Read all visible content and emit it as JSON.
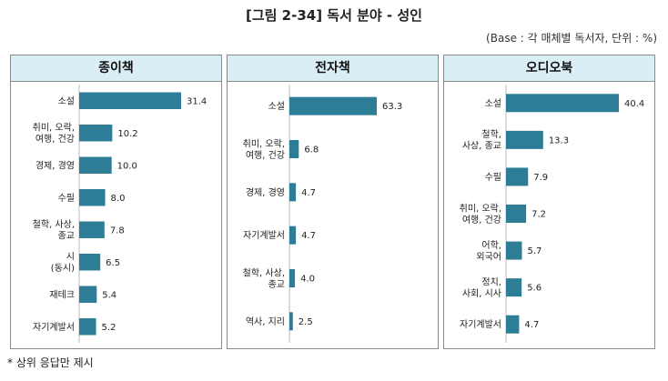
{
  "title": "[그림 2-34] 독서 분야 - 성인",
  "subtitle": "(Base : 각 매체별 독서자, 단위 : %)",
  "footnote": "* 상위 응답만 제시",
  "colors": {
    "bar": "#2e7d96",
    "header_bg": "#daeef6",
    "border": "#8a8a8a"
  },
  "chart_data": [
    {
      "type": "bar",
      "orientation": "horizontal",
      "title": "종이책",
      "categories": [
        [
          "소설"
        ],
        [
          "취미, 오락,",
          "여행, 건강"
        ],
        [
          "경제, 경영"
        ],
        [
          "수필"
        ],
        [
          "철학, 사상,",
          "종교"
        ],
        [
          "시",
          "(동시)"
        ],
        [
          "재테크"
        ],
        [
          "자기계발서"
        ]
      ],
      "values": [
        31.4,
        10.2,
        10.0,
        8.0,
        7.8,
        6.5,
        5.4,
        5.2
      ],
      "labels": [
        "31.4",
        "10.2",
        "10.0",
        "8.0",
        "7.8",
        "6.5",
        "5.4",
        "5.2"
      ]
    },
    {
      "type": "bar",
      "orientation": "horizontal",
      "title": "전자책",
      "categories": [
        [
          "소설"
        ],
        [
          "취미, 오락,",
          "여행, 건강"
        ],
        [
          "경제, 경영"
        ],
        [
          "자기계발서"
        ],
        [
          "철학, 사상,",
          "종교"
        ],
        [
          "역사, 지리"
        ]
      ],
      "values": [
        63.3,
        6.8,
        4.7,
        4.7,
        4.0,
        2.5
      ],
      "labels": [
        "63.3",
        "6.8",
        "4.7",
        "4.7",
        "4.0",
        "2.5"
      ]
    },
    {
      "type": "bar",
      "orientation": "horizontal",
      "title": "오디오북",
      "categories": [
        [
          "소설"
        ],
        [
          "철학,",
          "사상, 종교"
        ],
        [
          "수필"
        ],
        [
          "취미, 오락,",
          "여행, 건강"
        ],
        [
          "어학,",
          "외국어"
        ],
        [
          "정치,",
          "사회, 시사"
        ],
        [
          "자기계발서"
        ]
      ],
      "values": [
        40.4,
        13.3,
        7.9,
        7.2,
        5.7,
        5.6,
        4.7
      ],
      "labels": [
        "40.4",
        "13.3",
        "7.9",
        "7.2",
        "5.7",
        "5.6",
        "4.7"
      ]
    }
  ]
}
